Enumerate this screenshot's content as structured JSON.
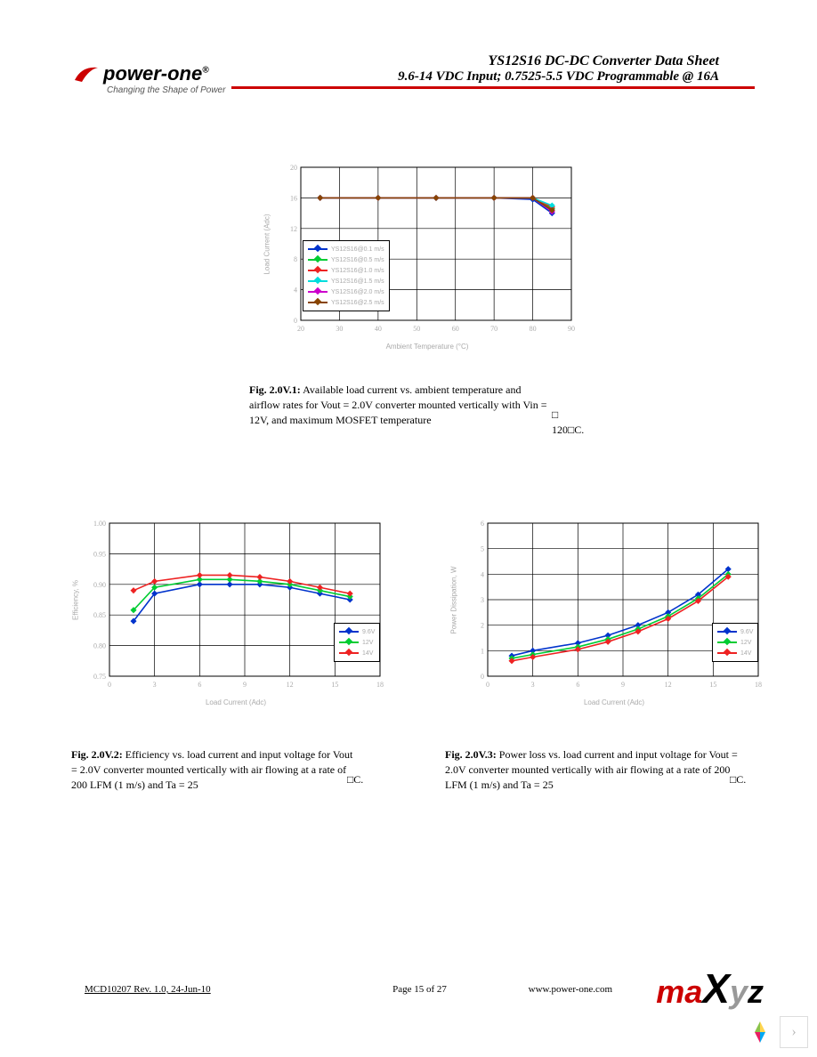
{
  "header": {
    "title": "YS12S16  DC-DC Converter Data Sheet",
    "subtitle": "9.6-14 VDC Input; 0.7525-5.5 VDC Programmable @ 16A",
    "rule_color": "#cc0000"
  },
  "logo": {
    "brand": "power-one",
    "reg": "®",
    "tagline": "Changing the Shape of Power",
    "swoosh_color": "#cc0000"
  },
  "chart1": {
    "type": "line",
    "xlabel": "Ambient Temperature (°C)",
    "ylabel": "Load Current (Adc)",
    "xlim": [
      20,
      90
    ],
    "ylim": [
      0,
      20
    ],
    "xtick_step": 10,
    "ytick_step": 4,
    "background_color": "#ffffff",
    "grid_color": "#000000",
    "series": [
      {
        "label": "YS12S16@0.1 m/s",
        "color": "#0033cc",
        "x": [
          25,
          40,
          55,
          70,
          80,
          85
        ],
        "y": [
          16,
          16,
          16,
          16,
          15.8,
          14.0
        ]
      },
      {
        "label": "YS12S16@0.5 m/s",
        "color": "#00cc33",
        "x": [
          25,
          40,
          55,
          70,
          80,
          85
        ],
        "y": [
          16,
          16,
          16,
          16,
          16,
          14.6
        ]
      },
      {
        "label": "YS12S16@1.0 m/s",
        "color": "#ee2222",
        "x": [
          25,
          40,
          55,
          70,
          80,
          85
        ],
        "y": [
          16,
          16,
          16,
          16,
          16,
          14.8
        ]
      },
      {
        "label": "YS12S16@1.5 m/s",
        "color": "#00dddd",
        "x": [
          25,
          40,
          55,
          70,
          80,
          85
        ],
        "y": [
          16,
          16,
          16,
          16,
          16,
          15.0
        ]
      },
      {
        "label": "YS12S16@2.0 m/s",
        "color": "#cc00cc",
        "x": [
          25,
          40,
          55,
          70,
          80,
          85
        ],
        "y": [
          16,
          16,
          16,
          16,
          16,
          14.2
        ]
      },
      {
        "label": "YS12S16@2.5 m/s",
        "color": "#884400",
        "x": [
          25,
          40,
          55,
          70,
          80,
          85
        ],
        "y": [
          16,
          16,
          16,
          16,
          16,
          14.4
        ]
      }
    ]
  },
  "caption1": {
    "label": "Fig. 2.0V.1:",
    "text": " Available load current vs. ambient temperature and airflow rates for Vout = 2.0V converter mounted vertically with Vin = 12V, and maximum MOSFET temperature",
    "suffix": "□ 120□C."
  },
  "chart2": {
    "type": "line",
    "xlabel": "Load Current (Adc)",
    "ylabel": "Efficiency, %",
    "xlim": [
      0,
      18
    ],
    "ylim": [
      0.75,
      1.0
    ],
    "xtick_step": 3,
    "ytick_step": 0.05,
    "yticks": [
      "0.75",
      "0.80",
      "0.85",
      "0.90",
      "0.95",
      "1.00"
    ],
    "background_color": "#ffffff",
    "grid_color": "#000000",
    "series": [
      {
        "label": "9.6V",
        "color": "#0033cc",
        "x": [
          1.6,
          3,
          6,
          8,
          10,
          12,
          14,
          16
        ],
        "y": [
          0.84,
          0.885,
          0.9,
          0.9,
          0.9,
          0.895,
          0.885,
          0.875
        ]
      },
      {
        "label": "12V",
        "color": "#00cc33",
        "x": [
          1.6,
          3,
          6,
          8,
          10,
          12,
          14,
          16
        ],
        "y": [
          0.858,
          0.895,
          0.908,
          0.908,
          0.905,
          0.9,
          0.89,
          0.88
        ]
      },
      {
        "label": "14V",
        "color": "#ee2222",
        "x": [
          1.6,
          3,
          6,
          8,
          10,
          12,
          14,
          16
        ],
        "y": [
          0.89,
          0.905,
          0.915,
          0.915,
          0.912,
          0.905,
          0.895,
          0.885
        ]
      }
    ]
  },
  "caption2": {
    "label": "Fig. 2.0V.2:",
    "text": " Efficiency vs. load current and input voltage for Vout = 2.0V converter mounted vertically with air flowing at a rate of 200 LFM (1 m/s) and Ta = 25",
    "suffix": "□C."
  },
  "chart3": {
    "type": "line",
    "xlabel": "Load Current (Adc)",
    "ylabel": "Power Dissipation, W",
    "xlim": [
      0,
      18
    ],
    "ylim": [
      0,
      6
    ],
    "xtick_step": 3,
    "ytick_step": 1,
    "background_color": "#ffffff",
    "grid_color": "#000000",
    "series": [
      {
        "label": "9.6V",
        "color": "#0033cc",
        "x": [
          1.6,
          3,
          6,
          8,
          10,
          12,
          14,
          16
        ],
        "y": [
          0.8,
          1.0,
          1.3,
          1.6,
          2.0,
          2.5,
          3.2,
          4.2
        ]
      },
      {
        "label": "12V",
        "color": "#00cc33",
        "x": [
          1.6,
          3,
          6,
          8,
          10,
          12,
          14,
          16
        ],
        "y": [
          0.7,
          0.85,
          1.15,
          1.45,
          1.85,
          2.35,
          3.05,
          4.0
        ]
      },
      {
        "label": "14V",
        "color": "#ee2222",
        "x": [
          1.6,
          3,
          6,
          8,
          10,
          12,
          14,
          16
        ],
        "y": [
          0.6,
          0.75,
          1.05,
          1.35,
          1.75,
          2.25,
          2.95,
          3.9
        ]
      }
    ]
  },
  "caption3": {
    "label": "Fig. 2.0V.3:",
    "text": " Power loss vs. load current and input voltage for Vout = 2.0V converter mounted vertically with air flowing at a rate of 200 LFM (1 m/s) and Ta = 25",
    "suffix": "□C."
  },
  "footer": {
    "left": "MCD10207 Rev. 1.0, 24-Jun-10",
    "center": "Page 15 of 27",
    "right": "www.power-one.com"
  },
  "watermark": {
    "m": "m",
    "a": "a",
    "x": "X",
    "y": "y",
    "z": "z",
    "col_m": "#cc0000",
    "col_a": "#cc0000",
    "col_x": "#000000",
    "col_y": "#999999",
    "col_z": "#000000"
  },
  "nav_thumb_colors": [
    "#ffd54f",
    "#8bc34a",
    "#03a9f4",
    "#e91e63"
  ]
}
